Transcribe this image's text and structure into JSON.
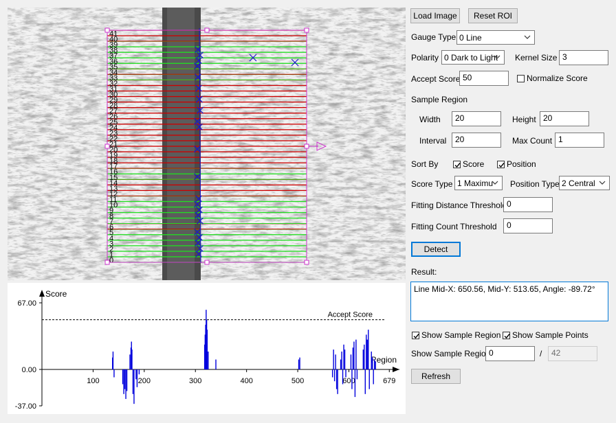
{
  "toolbar": {
    "load_image": "Load Image",
    "reset_roi": "Reset ROI"
  },
  "gauge_type": {
    "label": "Gauge Type",
    "value": "0 Line"
  },
  "polarity": {
    "label": "Polarity",
    "value": "0 Dark to Light"
  },
  "kernel_size": {
    "label": "Kernel Size",
    "value": "3"
  },
  "accept_score": {
    "label": "Accept Score",
    "value": "50"
  },
  "normalize_score": {
    "label": "Normalize Score",
    "checked": false
  },
  "sample_region": {
    "label": "Sample Region",
    "width_label": "Width",
    "width": "20",
    "height_label": "Height",
    "height": "20",
    "interval_label": "Interval",
    "interval": "20",
    "max_count_label": "Max Count",
    "max_count": "1"
  },
  "sort_by": {
    "label": "Sort By",
    "score": "Score",
    "position": "Position"
  },
  "score_type": {
    "label": "Score Type",
    "value": "1 Maximu"
  },
  "position_type": {
    "label": "Position Type",
    "value": "2 Central"
  },
  "fitting_distance": {
    "label": "Fitting Distance Threshold",
    "value": "0"
  },
  "fitting_count": {
    "label": "Fitting Count Threshold",
    "value": "0"
  },
  "detect": "Detect",
  "result": {
    "label": "Result:",
    "text": "Line Mid-X: 650.56, Mid-Y: 513.65, Angle: -89.72°"
  },
  "show_sample_region_cb": "Show Sample Region",
  "show_sample_points_cb": "Show Sample Points",
  "show_sample_region": {
    "label": "Show Sample Region",
    "value": "0",
    "sep": "/",
    "total": "42"
  },
  "refresh": "Refresh",
  "colors": {
    "pass": "#22dd22",
    "fail": "#cc0000",
    "roi": "#cc33cc",
    "marker": "#1a1acc",
    "bars": "#0000dd"
  },
  "region_labels": [
    "0",
    "1",
    "2",
    "3",
    "4",
    "5",
    "6",
    "7",
    "8",
    "9",
    "10",
    "11",
    "12",
    "13",
    "14",
    "15",
    "16",
    "17",
    "18",
    "19",
    "20",
    "21",
    "22",
    "23",
    "24",
    "25",
    "26",
    "27",
    "28",
    "29",
    "30",
    "31",
    "32",
    "33",
    "34",
    "35",
    "36",
    "37",
    "38",
    "39",
    "40",
    "41"
  ],
  "region_pass": [
    1,
    1,
    1,
    1,
    1,
    1,
    0,
    1,
    1,
    1,
    1,
    1,
    0,
    0,
    0,
    1,
    1,
    0,
    0,
    0,
    0,
    0,
    0,
    0,
    0,
    0,
    0,
    0,
    0,
    0,
    0,
    0,
    0,
    1,
    0,
    1,
    1,
    1,
    1,
    1,
    0,
    0
  ],
  "chart_data": {
    "type": "bar",
    "ylabel": "Score",
    "xlabel": "Region",
    "yticks": [
      "67.00",
      "0.00",
      "-37.00"
    ],
    "xticks": [
      "100",
      "200",
      "300",
      "400",
      "500",
      "600",
      "679"
    ],
    "xlim": [
      0,
      680
    ],
    "ylim": [
      -37,
      67
    ],
    "accept_score": 50,
    "accept_label": "Accept Score",
    "bars": [
      [
        138,
        12
      ],
      [
        139,
        18
      ],
      [
        141,
        -8
      ],
      [
        158,
        -15
      ],
      [
        160,
        -25
      ],
      [
        162,
        -20
      ],
      [
        164,
        -30
      ],
      [
        166,
        -22
      ],
      [
        172,
        15
      ],
      [
        174,
        22
      ],
      [
        175,
        28
      ],
      [
        176,
        20
      ],
      [
        178,
        -25
      ],
      [
        180,
        -35
      ],
      [
        184,
        -10
      ],
      [
        186,
        -18
      ],
      [
        190,
        -5
      ],
      [
        318,
        25
      ],
      [
        319,
        35
      ],
      [
        320,
        45
      ],
      [
        321,
        60
      ],
      [
        322,
        50
      ],
      [
        323,
        40
      ],
      [
        325,
        18
      ],
      [
        340,
        10
      ],
      [
        502,
        10
      ],
      [
        504,
        12
      ],
      [
        568,
        -8
      ],
      [
        570,
        20
      ],
      [
        572,
        -12
      ],
      [
        574,
        15
      ],
      [
        576,
        -20
      ],
      [
        578,
        -25
      ],
      [
        584,
        10
      ],
      [
        586,
        18
      ],
      [
        588,
        -15
      ],
      [
        590,
        25
      ],
      [
        592,
        20
      ],
      [
        594,
        -8
      ],
      [
        604,
        15
      ],
      [
        606,
        -20
      ],
      [
        608,
        22
      ],
      [
        610,
        28
      ],
      [
        612,
        -28
      ],
      [
        614,
        30
      ],
      [
        616,
        -10
      ],
      [
        628,
        20
      ],
      [
        630,
        25
      ],
      [
        632,
        -25
      ],
      [
        634,
        35
      ],
      [
        636,
        30
      ],
      [
        638,
        40
      ],
      [
        640,
        -20
      ],
      [
        644,
        18
      ],
      [
        646,
        12
      ],
      [
        648,
        -15
      ],
      [
        650,
        10
      ],
      [
        652,
        8
      ]
    ]
  }
}
